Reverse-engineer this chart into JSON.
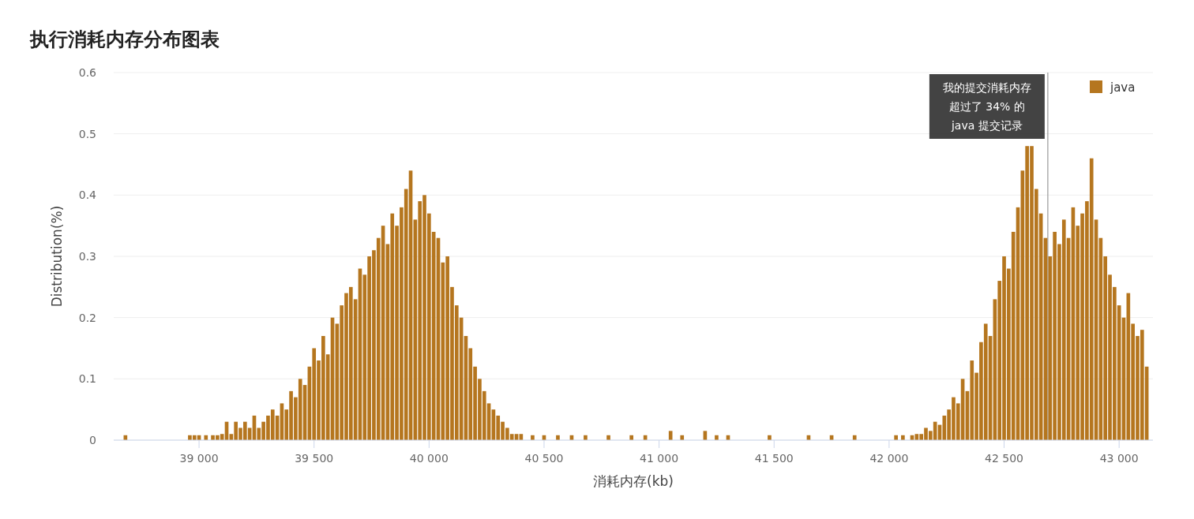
{
  "chart_data": {
    "type": "bar",
    "title": "执行消耗内存分布图表",
    "xlabel": "消耗内存(kb)",
    "ylabel": "Distribution(%)",
    "xlim": [
      38629,
      43147
    ],
    "ylim": [
      0,
      0.6
    ],
    "xticks": [
      {
        "value": 39000,
        "label": "39 000"
      },
      {
        "value": 39500,
        "label": "39 500"
      },
      {
        "value": 40000,
        "label": "40 000"
      },
      {
        "value": 40500,
        "label": "40 500"
      },
      {
        "value": 41000,
        "label": "41 000"
      },
      {
        "value": 41500,
        "label": "41 500"
      },
      {
        "value": 42000,
        "label": "42 000"
      },
      {
        "value": 42500,
        "label": "42 500"
      },
      {
        "value": 43000,
        "label": "43 000"
      }
    ],
    "yticks": [
      0,
      0.1,
      0.2,
      0.3,
      0.4,
      0.5,
      0.6
    ],
    "grid": "y",
    "legend": "top right",
    "x": [
      38680,
      38960,
      38980,
      39000,
      39030,
      39060,
      39080,
      39100,
      39120,
      39140,
      39160,
      39180,
      39200,
      39220,
      39240,
      39260,
      39280,
      39300,
      39320,
      39340,
      39360,
      39380,
      39400,
      39420,
      39440,
      39460,
      39480,
      39500,
      39520,
      39540,
      39560,
      39580,
      39600,
      39620,
      39640,
      39660,
      39680,
      39700,
      39720,
      39740,
      39760,
      39780,
      39800,
      39820,
      39840,
      39860,
      39880,
      39900,
      39920,
      39940,
      39960,
      39980,
      40000,
      40020,
      40040,
      40060,
      40080,
      40100,
      40120,
      40140,
      40160,
      40180,
      40200,
      40220,
      40240,
      40260,
      40280,
      40300,
      40320,
      40340,
      40360,
      40380,
      40400,
      40450,
      40500,
      40560,
      40620,
      40680,
      40780,
      40880,
      40940,
      41050,
      41100,
      41200,
      41250,
      41300,
      41480,
      41650,
      41750,
      41850,
      42030,
      42060,
      42100,
      42120,
      42140,
      42160,
      42180,
      42200,
      42220,
      42240,
      42260,
      42280,
      42300,
      42320,
      42340,
      42360,
      42380,
      42400,
      42420,
      42440,
      42460,
      42480,
      42500,
      42520,
      42540,
      42560,
      42580,
      42600,
      42620,
      42640,
      42660,
      42680,
      42700,
      42720,
      42740,
      42760,
      42780,
      42800,
      42820,
      42840,
      42860,
      42880,
      42900,
      42920,
      42940,
      42960,
      42980,
      43000,
      43020,
      43040,
      43060,
      43080,
      43100,
      43120
    ],
    "series": [
      {
        "name": "java",
        "color": "#b5761f",
        "values": [
          0.008,
          0.008,
          0.008,
          0.008,
          0.008,
          0.008,
          0.008,
          0.01,
          0.03,
          0.01,
          0.03,
          0.02,
          0.03,
          0.02,
          0.04,
          0.02,
          0.03,
          0.04,
          0.05,
          0.04,
          0.06,
          0.05,
          0.08,
          0.07,
          0.1,
          0.09,
          0.12,
          0.15,
          0.13,
          0.17,
          0.14,
          0.2,
          0.19,
          0.22,
          0.24,
          0.25,
          0.23,
          0.28,
          0.27,
          0.3,
          0.31,
          0.33,
          0.35,
          0.32,
          0.37,
          0.35,
          0.38,
          0.41,
          0.44,
          0.36,
          0.39,
          0.4,
          0.37,
          0.34,
          0.33,
          0.29,
          0.3,
          0.25,
          0.22,
          0.2,
          0.17,
          0.15,
          0.12,
          0.1,
          0.08,
          0.06,
          0.05,
          0.04,
          0.03,
          0.02,
          0.01,
          0.01,
          0.01,
          0.008,
          0.008,
          0.008,
          0.008,
          0.008,
          0.008,
          0.008,
          0.008,
          0.015,
          0.008,
          0.015,
          0.008,
          0.008,
          0.008,
          0.008,
          0.008,
          0.008,
          0.008,
          0.008,
          0.008,
          0.01,
          0.01,
          0.02,
          0.015,
          0.03,
          0.025,
          0.04,
          0.05,
          0.07,
          0.06,
          0.1,
          0.08,
          0.13,
          0.11,
          0.16,
          0.19,
          0.17,
          0.23,
          0.26,
          0.3,
          0.28,
          0.34,
          0.38,
          0.44,
          0.48,
          0.48,
          0.41,
          0.37,
          0.33,
          0.3,
          0.34,
          0.32,
          0.36,
          0.33,
          0.38,
          0.35,
          0.37,
          0.39,
          0.46,
          0.36,
          0.33,
          0.3,
          0.27,
          0.25,
          0.22,
          0.2,
          0.24,
          0.19,
          0.17,
          0.18,
          0.12
        ]
      }
    ],
    "ref_lines": [
      {
        "axis": "x",
        "value": 42690,
        "label": "我的提交消耗内存超过了 34% 的 java 提交记录",
        "color": "#999999"
      }
    ]
  }
}
